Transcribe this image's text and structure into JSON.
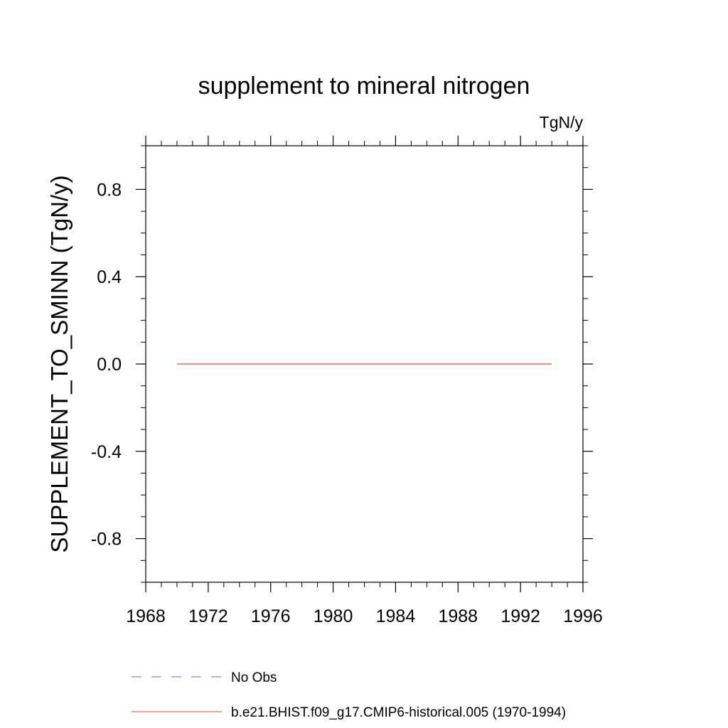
{
  "chart_data": {
    "type": "line",
    "title": "supplement to mineral nitrogen",
    "units": "TgN/y",
    "xlabel": "",
    "ylabel": "SUPPLEMENT_TO_SMINN  (TgN/y)",
    "xlim": [
      1968,
      1996
    ],
    "ylim": [
      -1.0,
      1.0
    ],
    "x_ticks": [
      1968,
      1972,
      1976,
      1980,
      1984,
      1988,
      1992,
      1996
    ],
    "y_ticks": [
      -0.8,
      -0.4,
      0.0,
      0.4,
      0.8
    ],
    "y_tick_labels": [
      "-0.8",
      "-0.4",
      "0.0",
      "0.4",
      "0.8"
    ],
    "x_minor_step": 1,
    "y_minor_step": 0.1,
    "grid": false,
    "legend_position": "bottom",
    "series": [
      {
        "name": "No Obs",
        "color": "#8888dd",
        "style": "dashed",
        "x": [],
        "y": []
      },
      {
        "name": "b.e21.BHIST.f09_g17.CMIP6-historical.005 (1970-1994)",
        "color": "#ee6a6a",
        "style": "solid",
        "x": [
          1970,
          1971,
          1972,
          1973,
          1974,
          1975,
          1976,
          1977,
          1978,
          1979,
          1980,
          1981,
          1982,
          1983,
          1984,
          1985,
          1986,
          1987,
          1988,
          1989,
          1990,
          1991,
          1992,
          1993,
          1994
        ],
        "y": [
          0,
          0,
          0,
          0,
          0,
          0,
          0,
          0,
          0,
          0,
          0,
          0,
          0,
          0,
          0,
          0,
          0,
          0,
          0,
          0,
          0,
          0,
          0,
          0,
          0
        ]
      }
    ]
  }
}
